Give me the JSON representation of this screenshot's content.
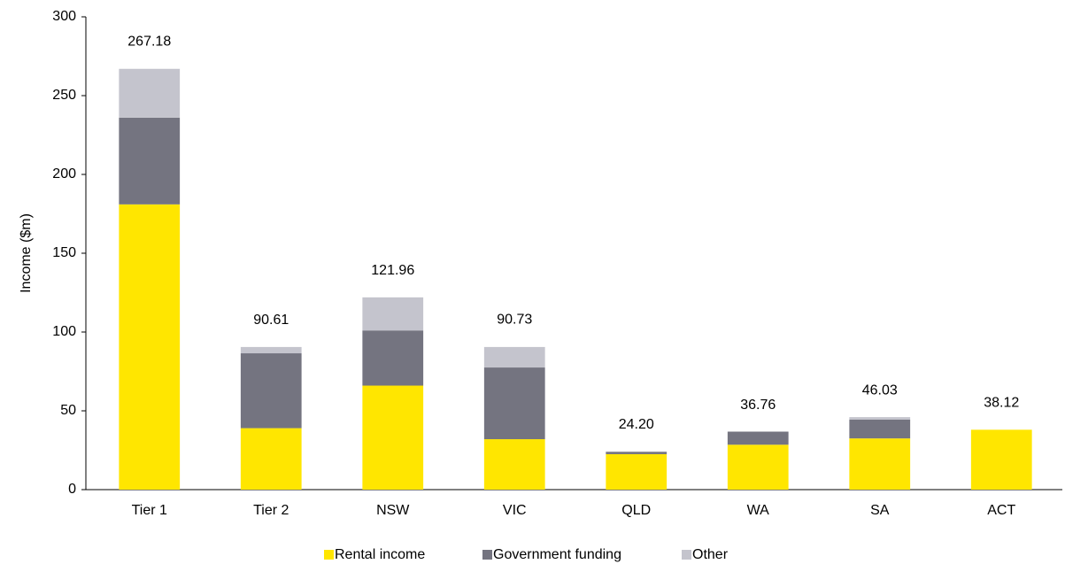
{
  "chart_data": {
    "type": "stacked_bar",
    "y_label": "Income ($m)",
    "categories": [
      "Tier 1",
      "Tier 2",
      "NSW",
      "VIC",
      "QLD",
      "WA",
      "SA",
      "ACT"
    ],
    "series": [
      {
        "name": "Rental income",
        "color": "#ffe600",
        "values": [
          181,
          39,
          66,
          32,
          22.5,
          28.5,
          32.5,
          38
        ]
      },
      {
        "name": "Government funding",
        "color": "#747480",
        "values": [
          55,
          47.5,
          35,
          45.5,
          1.5,
          8.3,
          12,
          0
        ]
      },
      {
        "name": "Other",
        "color": "#c4c4cd",
        "values": [
          31,
          4,
          21,
          13,
          0.2,
          0,
          1.5,
          0
        ]
      }
    ],
    "totals": [
      267.18,
      90.61,
      121.96,
      90.73,
      24.2,
      36.76,
      46.03,
      38.12
    ],
    "total_labels": [
      "267.18",
      "90.61",
      "121.96",
      "90.73",
      "24.20",
      "36.76",
      "46.03",
      "38.12"
    ],
    "ylim": [
      0,
      300
    ],
    "yticks": [
      0,
      50,
      100,
      150,
      200,
      250,
      300
    ],
    "legend": "bottom"
  }
}
